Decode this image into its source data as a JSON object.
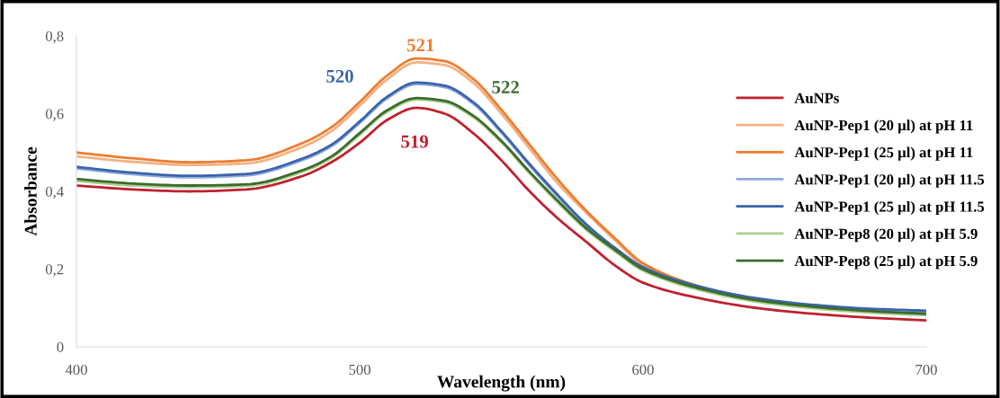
{
  "chart_data": {
    "type": "line",
    "xlabel": "Wavelength (nm)",
    "ylabel": "Absorbance",
    "xlim": [
      400,
      700
    ],
    "xticks": [
      400,
      500,
      600,
      700
    ],
    "ylim": [
      0,
      0.8
    ],
    "yticks": [
      {
        "value": 0,
        "label": "0"
      },
      {
        "value": 0.2,
        "label": "0,2"
      },
      {
        "value": 0.4,
        "label": "0,4"
      },
      {
        "value": 0.6,
        "label": "0,6"
      },
      {
        "value": 0.8,
        "label": "0,8"
      }
    ],
    "grid": false,
    "legend": "top right",
    "marker": "none",
    "line_style": "solid",
    "x": [
      400,
      420,
      440,
      460,
      480,
      490,
      500,
      510,
      520,
      530,
      540,
      550,
      560,
      570,
      580,
      590,
      600,
      620,
      640,
      660,
      680,
      700
    ],
    "series": [
      {
        "name": "AuNPs",
        "color": "#c0202f",
        "values": [
          0.415,
          0.405,
          0.4,
          0.405,
          0.44,
          0.475,
          0.525,
          0.585,
          0.615,
          0.6,
          0.55,
          0.48,
          0.4,
          0.33,
          0.27,
          0.21,
          0.165,
          0.125,
          0.1,
          0.085,
          0.075,
          0.068
        ]
      },
      {
        "name": "AuNP-Pep1 (20 µl) at pH 11",
        "color": "#f4b183",
        "values": [
          0.49,
          0.476,
          0.468,
          0.472,
          0.515,
          0.555,
          0.62,
          0.69,
          0.732,
          0.725,
          0.68,
          0.6,
          0.51,
          0.42,
          0.345,
          0.275,
          0.21,
          0.15,
          0.118,
          null,
          null,
          null
        ]
      },
      {
        "name": "AuNP-Pep1 (25 µl) at pH 11",
        "color": "#ed7d31",
        "values": [
          0.5,
          0.485,
          0.475,
          0.48,
          0.525,
          0.565,
          0.63,
          0.7,
          0.742,
          0.735,
          0.69,
          0.61,
          0.52,
          0.43,
          0.35,
          0.28,
          0.215,
          0.155,
          0.12,
          null,
          null,
          null
        ]
      },
      {
        "name": "AuNP-Pep1 (20 µl) at pH 11.5",
        "color": "#8faadc",
        "values": [
          0.459,
          0.444,
          0.436,
          0.441,
          0.481,
          0.516,
          0.576,
          0.641,
          0.676,
          0.668,
          0.626,
          0.551,
          0.466,
          0.386,
          0.311,
          0.251,
          0.201,
          0.151,
          0.121,
          0.104,
          0.094,
          0.089
        ]
      },
      {
        "name": "AuNP-Pep1 (25 µl) at pH 11.5",
        "color": "#3a64ab",
        "values": [
          0.463,
          0.448,
          0.44,
          0.445,
          0.485,
          0.52,
          0.58,
          0.645,
          0.68,
          0.672,
          0.63,
          0.555,
          0.47,
          0.39,
          0.315,
          0.255,
          0.205,
          0.155,
          0.125,
          0.108,
          0.098,
          0.093
        ]
      },
      {
        "name": "AuNP-Pep8 (20 µl) at pH 5.9",
        "color": "#a9d18e",
        "values": [
          0.427,
          0.415,
          0.411,
          0.414,
          0.451,
          0.486,
          0.546,
          0.606,
          0.636,
          0.629,
          0.591,
          0.526,
          0.446,
          0.371,
          0.301,
          0.246,
          0.196,
          0.146,
          0.116,
          0.099,
          0.088,
          0.081
        ]
      },
      {
        "name": "AuNP-Pep8 (25 µl) at pH 5.9",
        "color": "#3d6b2c",
        "values": [
          0.432,
          0.42,
          0.415,
          0.418,
          0.455,
          0.49,
          0.55,
          0.61,
          0.64,
          0.633,
          0.595,
          0.53,
          0.45,
          0.375,
          0.305,
          0.25,
          0.2,
          0.15,
          0.12,
          0.103,
          0.092,
          0.085
        ]
      }
    ],
    "annotations": [
      "519",
      "520",
      "521",
      "522"
    ]
  }
}
